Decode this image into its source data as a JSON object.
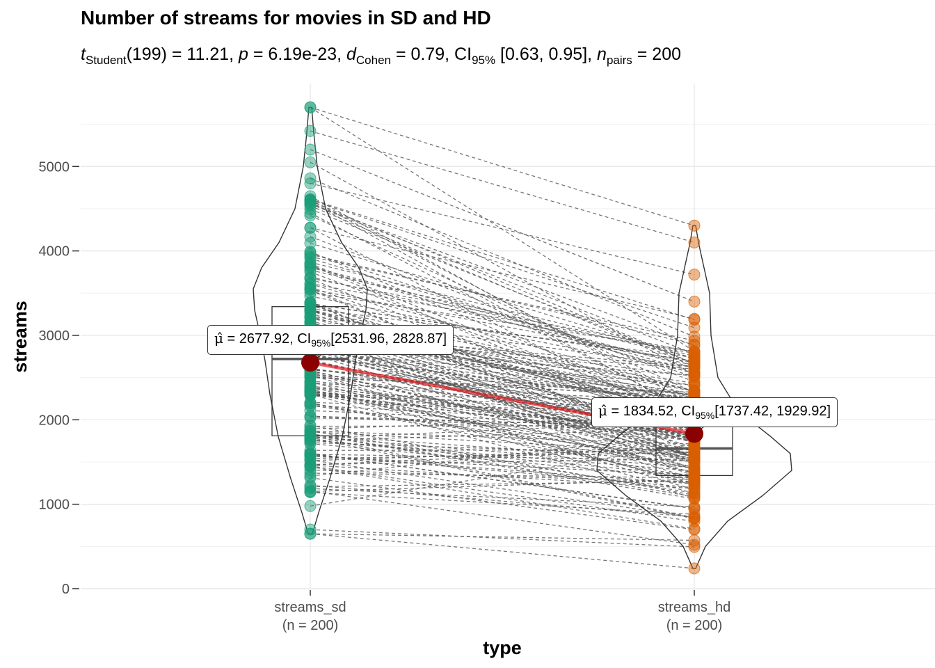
{
  "chart_data": {
    "type": "violin",
    "title": "Number of streams for movies in SD and HD",
    "subtitle": {
      "t_label": "t",
      "t_sub": "Student",
      "df_text": "(199) = 11.21, ",
      "p_label": "p",
      "p_text": " = 6.19e-23, ",
      "d_label": "d",
      "d_sub": "Cohen",
      "d_text": " = 0.79, CI",
      "ci_sub": "95%",
      "ci_text": " [0.63, 0.95], ",
      "n_label": "n",
      "n_sub": "pairs",
      "n_text": " = 200"
    },
    "xlabel": "type",
    "ylabel": "streams",
    "ylim": [
      0,
      5800
    ],
    "yticks": [
      0,
      1000,
      2000,
      3000,
      4000,
      5000
    ],
    "ytick_labels": [
      "0",
      "1000",
      "2000",
      "3000",
      "4000",
      "5000"
    ],
    "grid": true,
    "categories": [
      {
        "name": "streams_sd",
        "n_label": "(n = 200)"
      },
      {
        "name": "streams_hd",
        "n_label": "(n = 200)"
      }
    ],
    "series": [
      {
        "name": "streams_sd",
        "color": "#1b9e77",
        "mean": 2677.92,
        "ci": [
          2531.96,
          2828.87
        ],
        "box": {
          "q1": 1810,
          "median": 2720,
          "q3": 3340
        },
        "min": 650,
        "max": 5700,
        "label_parts": {
          "prefix": " = 2677.92, CI",
          "ci_sub": "95%",
          "suffix": "[2531.96, 2828.87]"
        }
      },
      {
        "name": "streams_hd",
        "color": "#d95f02",
        "mean": 1834.52,
        "ci": [
          1737.42,
          1929.92
        ],
        "box": {
          "q1": 1340,
          "median": 1660,
          "q3": 2050
        },
        "min": 240,
        "max": 4300,
        "label_parts": {
          "prefix": " = 1834.52, CI",
          "ci_sub": "95%",
          "suffix": "[1737.42, 1929.92]"
        }
      }
    ],
    "mean_symbol": "μ̂",
    "mean_color": "#8b0000",
    "mean_line_color": "#e31a1c"
  }
}
